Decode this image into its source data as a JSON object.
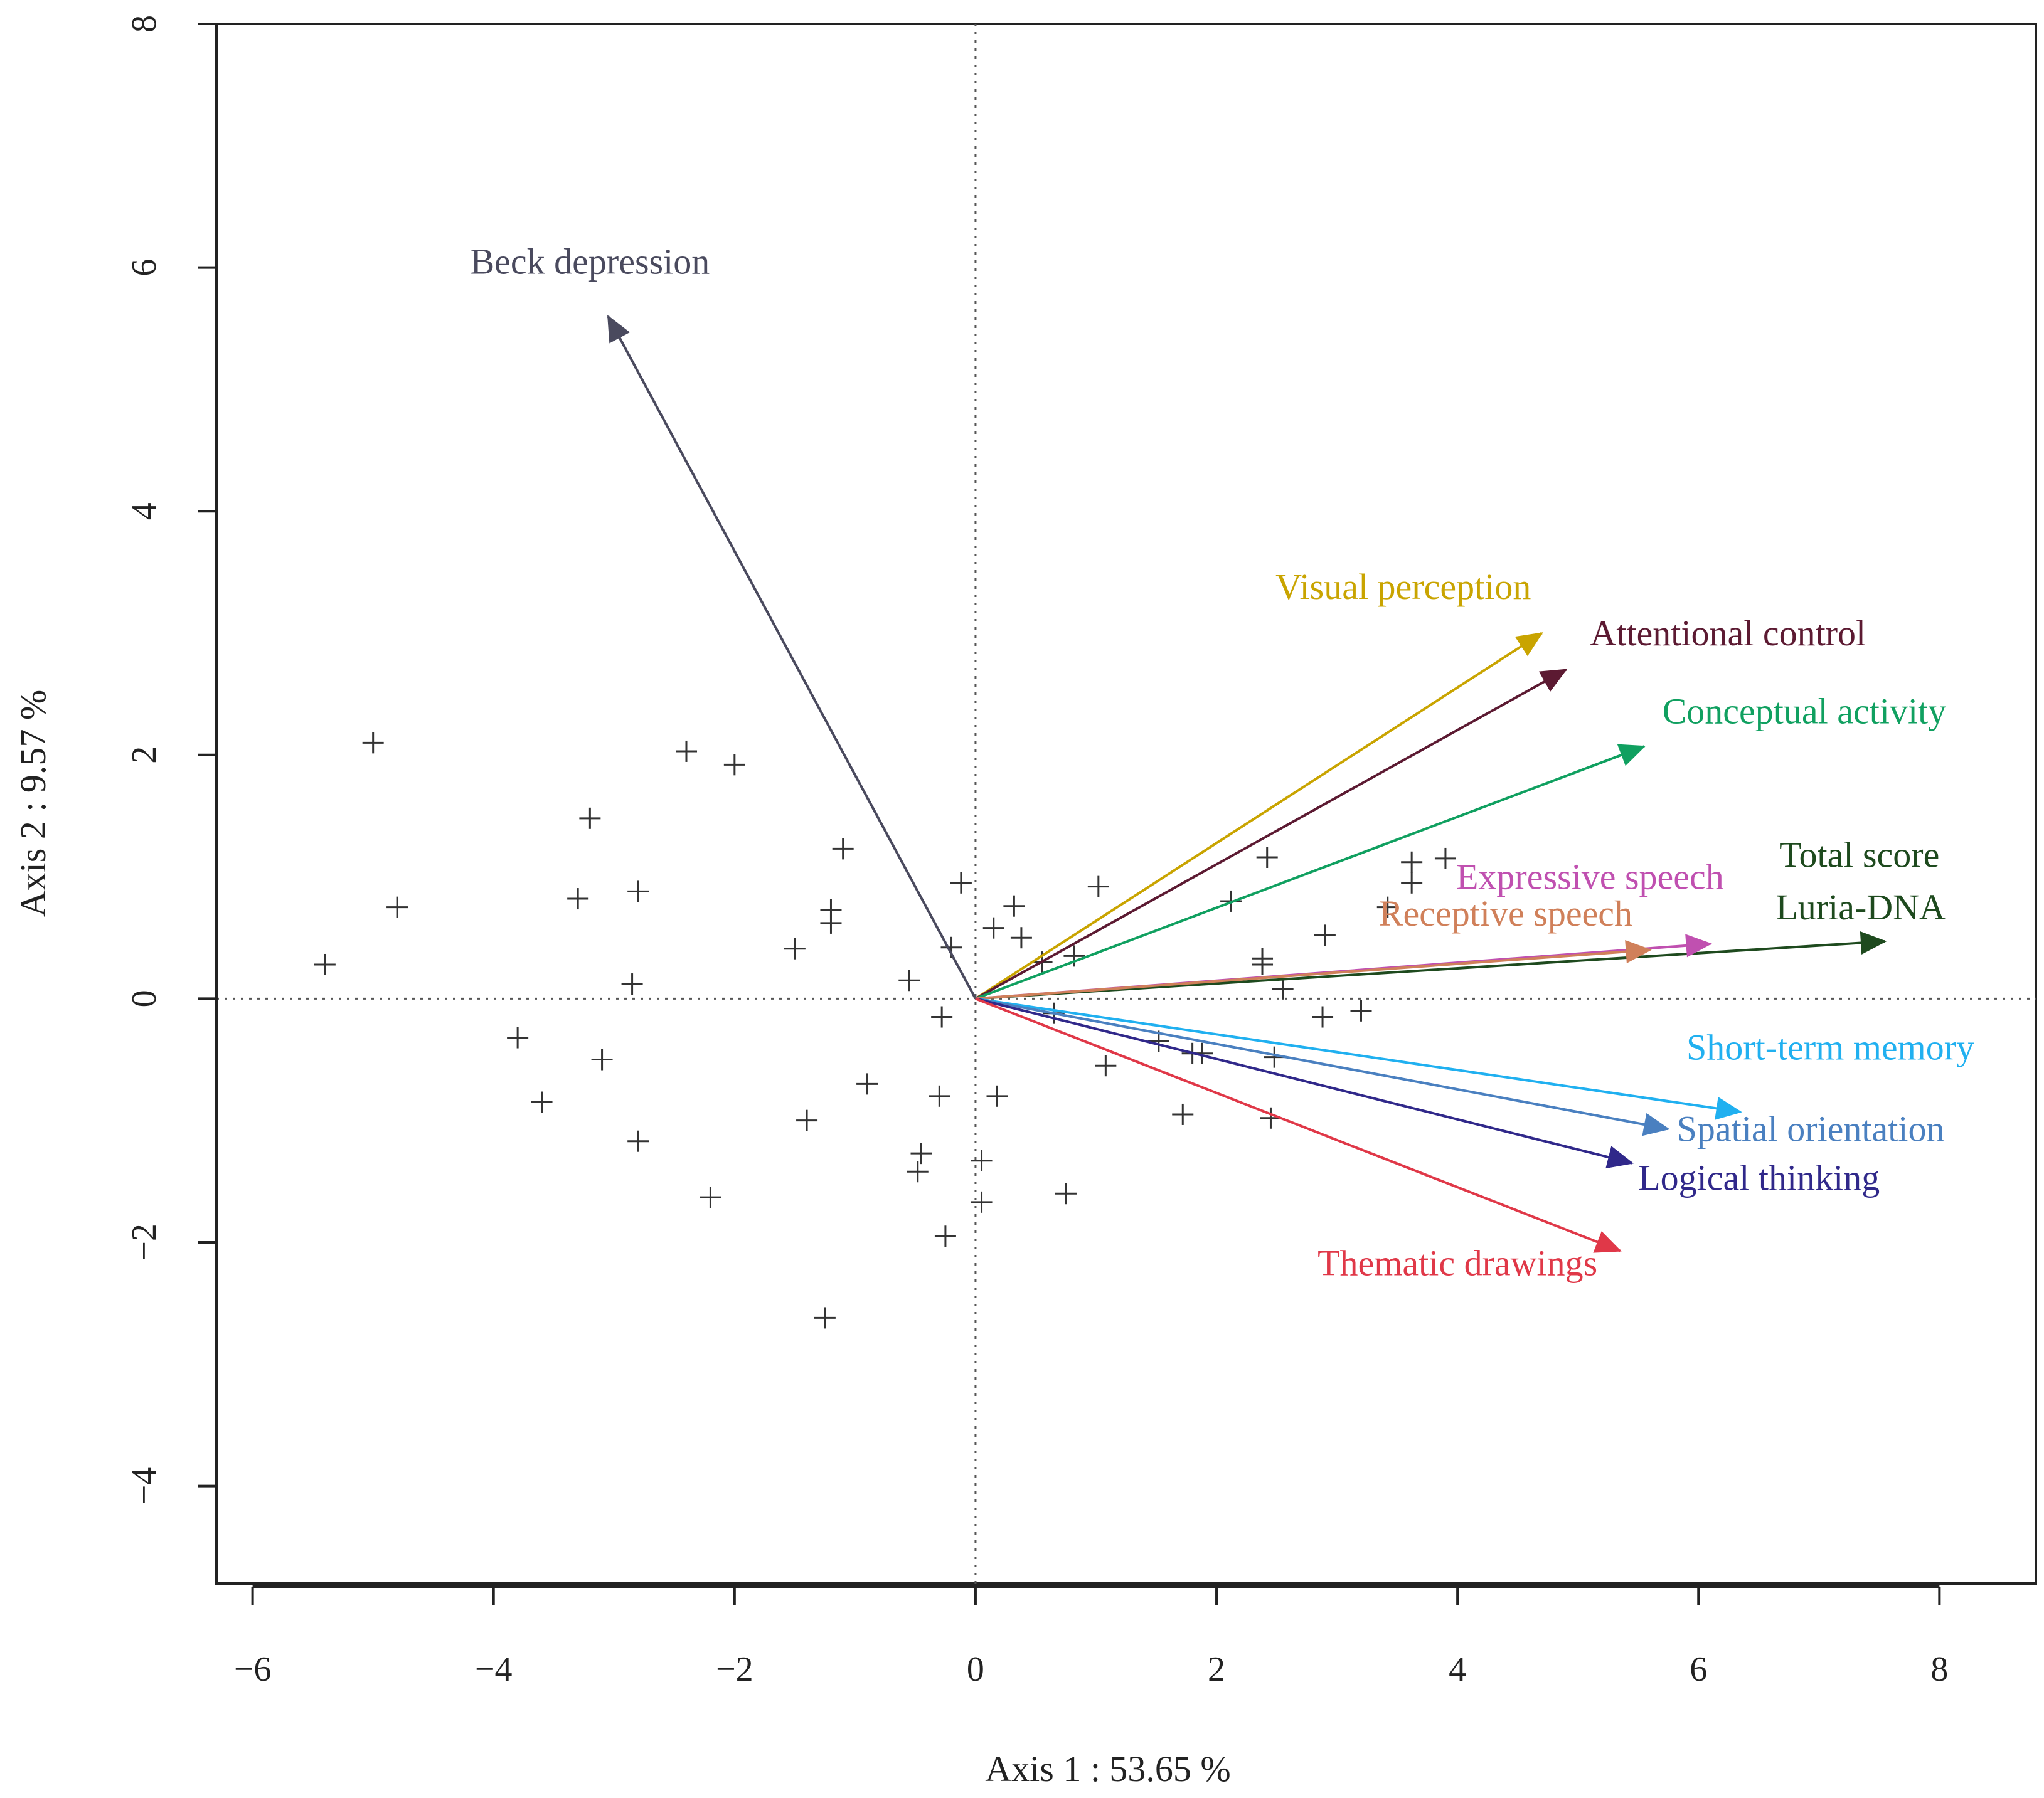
{
  "chart_data": {
    "type": "scatter",
    "xlabel": "Axis 1 : 53.65 %",
    "ylabel": "Axis 2 : 9.57 %",
    "xlim": [
      -6.3,
      8.8
    ],
    "ylim": [
      -4.8,
      8.0
    ],
    "x_ticks": [
      -6,
      -4,
      -2,
      0,
      2,
      4,
      6,
      8
    ],
    "y_ticks": [
      -4,
      -2,
      0,
      2,
      4,
      6,
      8
    ],
    "x_tick_labels": [
      "−6",
      "−4",
      "−2",
      "0",
      "2",
      "4",
      "6",
      "8"
    ],
    "y_tick_labels": [
      "−4",
      "−2",
      "0",
      "2",
      "4",
      "6",
      "8"
    ],
    "reference_lines": {
      "x": 0,
      "y": 0,
      "style": "dotted"
    },
    "points": [
      {
        "x": -5.0,
        "y": 2.1
      },
      {
        "x": -4.8,
        "y": 0.75
      },
      {
        "x": -5.4,
        "y": 0.28
      },
      {
        "x": -3.2,
        "y": 1.48
      },
      {
        "x": -3.3,
        "y": 0.82
      },
      {
        "x": -2.8,
        "y": 0.88
      },
      {
        "x": -2.85,
        "y": 0.12
      },
      {
        "x": -3.8,
        "y": -0.32
      },
      {
        "x": -3.6,
        "y": -0.85
      },
      {
        "x": -3.1,
        "y": -0.5
      },
      {
        "x": -2.8,
        "y": -1.17
      },
      {
        "x": -2.4,
        "y": 2.03
      },
      {
        "x": -2.0,
        "y": 1.92
      },
      {
        "x": -2.2,
        "y": -1.63
      },
      {
        "x": -1.1,
        "y": 1.23
      },
      {
        "x": -1.2,
        "y": 0.73
      },
      {
        "x": -1.2,
        "y": 0.62
      },
      {
        "x": -1.5,
        "y": 0.41
      },
      {
        "x": -1.4,
        "y": -1.0
      },
      {
        "x": -0.9,
        "y": -0.7
      },
      {
        "x": -1.25,
        "y": -2.62
      },
      {
        "x": -0.55,
        "y": 0.15
      },
      {
        "x": -0.12,
        "y": 0.95
      },
      {
        "x": -0.2,
        "y": 0.42
      },
      {
        "x": -0.28,
        "y": -0.15
      },
      {
        "x": -0.3,
        "y": -0.8
      },
      {
        "x": -0.45,
        "y": -1.27
      },
      {
        "x": -0.48,
        "y": -1.42
      },
      {
        "x": -0.25,
        "y": -1.95
      },
      {
        "x": 0.15,
        "y": 0.58
      },
      {
        "x": 0.32,
        "y": 0.76
      },
      {
        "x": 0.38,
        "y": 0.5
      },
      {
        "x": 0.55,
        "y": 0.3
      },
      {
        "x": 0.65,
        "y": -0.12
      },
      {
        "x": 0.82,
        "y": 0.35
      },
      {
        "x": 1.02,
        "y": 0.92
      },
      {
        "x": 0.18,
        "y": -0.8
      },
      {
        "x": 0.05,
        "y": -1.33
      },
      {
        "x": 0.05,
        "y": -1.67
      },
      {
        "x": 0.75,
        "y": -1.6
      },
      {
        "x": 1.08,
        "y": -0.55
      },
      {
        "x": 1.52,
        "y": -0.35
      },
      {
        "x": 1.8,
        "y": -0.45
      },
      {
        "x": 1.88,
        "y": -0.45
      },
      {
        "x": 1.72,
        "y": -0.95
      },
      {
        "x": 2.12,
        "y": 0.8
      },
      {
        "x": 2.42,
        "y": 1.16
      },
      {
        "x": 2.38,
        "y": 0.33
      },
      {
        "x": 2.38,
        "y": 0.28
      },
      {
        "x": 2.55,
        "y": 0.08
      },
      {
        "x": 2.48,
        "y": -0.48
      },
      {
        "x": 2.45,
        "y": -0.98
      },
      {
        "x": 2.9,
        "y": 0.52
      },
      {
        "x": 2.88,
        "y": -0.15
      },
      {
        "x": 3.2,
        "y": -0.1
      },
      {
        "x": 3.42,
        "y": 0.75
      },
      {
        "x": 3.62,
        "y": 1.12
      },
      {
        "x": 3.62,
        "y": 0.95
      },
      {
        "x": 3.9,
        "y": 1.15
      }
    ],
    "vectors": [
      {
        "name": "Beck depression",
        "x": -3.05,
        "y": 5.6,
        "color": "#4a4a5e",
        "label_x": -3.2,
        "label_y": 5.95,
        "label_anchor": "middle"
      },
      {
        "name": "Visual perception",
        "x": 4.7,
        "y": 3.0,
        "color": "#c9a400",
        "label_x": 3.55,
        "label_y": 3.28,
        "label_anchor": "middle"
      },
      {
        "name": "Attentional control",
        "x": 4.9,
        "y": 2.7,
        "color": "#5c1a32",
        "label_x": 5.1,
        "label_y": 2.9,
        "label_anchor": "start"
      },
      {
        "name": "Conceptual activity",
        "x": 5.55,
        "y": 2.07,
        "color": "#10a060",
        "label_x": 5.7,
        "label_y": 2.26,
        "label_anchor": "start"
      },
      {
        "name": "Total score",
        "x": 7.55,
        "y": 0.47,
        "color": "#1e4a1e",
        "label_x": 8.0,
        "label_y": 1.08,
        "label_anchor": "end"
      },
      {
        "name": "Luria-DNA",
        "x": 7.55,
        "y": 0.47,
        "color": "#1e4a1e",
        "label_x": 8.05,
        "label_y": 0.65,
        "label_anchor": "end"
      },
      {
        "name": "Expressive speech",
        "x": 6.1,
        "y": 0.45,
        "color": "#c050b0",
        "label_x": 5.1,
        "label_y": 0.9,
        "label_anchor": "middle"
      },
      {
        "name": "Receptive speech",
        "x": 5.6,
        "y": 0.4,
        "color": "#d0805a",
        "label_x": 4.4,
        "label_y": 0.6,
        "label_anchor": "middle"
      },
      {
        "name": "Short-term memory",
        "x": 6.35,
        "y": -0.93,
        "color": "#20b0f0",
        "label_x": 5.9,
        "label_y": -0.5,
        "label_anchor": "start"
      },
      {
        "name": "Spatial orientation",
        "x": 5.75,
        "y": -1.07,
        "color": "#4a80c0",
        "label_x": 5.82,
        "label_y": -1.17,
        "label_anchor": "start"
      },
      {
        "name": "Logical thinking",
        "x": 5.45,
        "y": -1.35,
        "color": "#30288a",
        "label_x": 5.5,
        "label_y": -1.57,
        "label_anchor": "start"
      },
      {
        "name": "Thematic drawings",
        "x": 5.35,
        "y": -2.07,
        "color": "#e03848",
        "label_x": 4.0,
        "label_y": -2.27,
        "label_anchor": "middle"
      }
    ],
    "grid": false,
    "legend": "none"
  }
}
